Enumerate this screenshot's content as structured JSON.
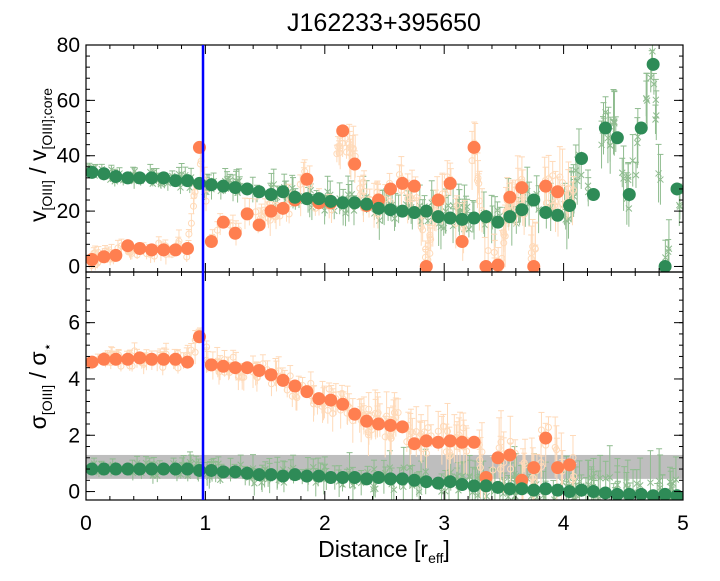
{
  "chart_data": {
    "type": "scatter",
    "title": "J162233+395650",
    "x_axis": {
      "label": "Distance [r",
      "label_sub": "eff",
      "label_close": "]",
      "range": [
        0,
        5
      ],
      "ticks": [
        "0",
        "1",
        "2",
        "3",
        "4",
        "5"
      ]
    },
    "reference_line_x": 0.98,
    "colors": {
      "orange": "#FF7F50",
      "green": "#2E8B57",
      "light_orange": "#FFDAB9",
      "light_green": "#8FBC8F",
      "blue": "#0000FF",
      "band": "#BEBEBE"
    },
    "panels": [
      {
        "ylabel_parts": [
          "v",
          "[OIII]",
          " / v",
          "[OIII];core"
        ],
        "ylim": [
          -2,
          80
        ],
        "yticks": [
          "0",
          "20",
          "40",
          "60",
          "80"
        ],
        "series": [
          {
            "marker": "filled-circle",
            "color": "orange",
            "x": [
              0.05,
              0.15,
              0.25,
              0.35,
              0.45,
              0.55,
              0.65,
              0.75,
              0.85,
              0.95,
              1.05,
              1.15,
              1.25,
              1.35,
              1.45,
              1.55,
              1.65,
              1.75,
              1.85,
              1.95,
              2.05,
              2.15,
              2.25,
              2.35,
              2.45,
              2.55,
              2.65,
              2.75,
              2.85,
              2.95,
              3.05,
              3.15,
              3.25,
              3.35,
              3.45,
              3.55,
              3.65,
              3.75,
              3.85,
              3.95
            ],
            "y": [
              2.5,
              3.5,
              4,
              7.5,
              6.5,
              6,
              6,
              6,
              6.5,
              43,
              9,
              16,
              12,
              19,
              15,
              20,
              21,
              24,
              31.5,
              23,
              23,
              49,
              37,
              22,
              24,
              28,
              30,
              29,
              0,
              24,
              30,
              9,
              43,
              0,
              0.5,
              25,
              28.5,
              0,
              29,
              27
            ]
          },
          {
            "marker": "filled-circle",
            "color": "green",
            "x": [
              0.05,
              0.15,
              0.25,
              0.35,
              0.45,
              0.55,
              0.65,
              0.75,
              0.85,
              0.95,
              1.05,
              1.15,
              1.25,
              1.35,
              1.45,
              1.55,
              1.65,
              1.75,
              1.85,
              1.95,
              2.05,
              2.15,
              2.25,
              2.35,
              2.45,
              2.55,
              2.65,
              2.75,
              2.85,
              2.95,
              3.05,
              3.15,
              3.25,
              3.35,
              3.45,
              3.55,
              3.65,
              3.75,
              3.85,
              3.95,
              4.05,
              4.15,
              4.25,
              4.35,
              4.45,
              4.55,
              4.65,
              4.75,
              4.85,
              4.95
            ],
            "y": [
              34,
              33.5,
              32.5,
              32,
              32,
              32,
              32,
              31,
              31,
              30,
              29.5,
              29,
              28.5,
              28,
              27,
              26,
              27,
              25,
              24.5,
              24.5,
              23.5,
              23,
              23,
              22.5,
              21,
              20.5,
              20,
              19.5,
              20,
              18,
              17.5,
              17,
              17.5,
              18,
              16,
              18,
              20.5,
              24,
              19.5,
              18.5,
              22,
              39,
              26,
              50,
              46.5,
              26,
              50,
              73,
              0,
              28
            ]
          }
        ]
      },
      {
        "ylabel_parts": [
          "σ",
          "[OIII]",
          " / σ",
          "⋆"
        ],
        "ylim": [
          -0.3,
          7.8
        ],
        "yticks": [
          "0",
          "2",
          "4",
          "6"
        ],
        "band": [
          0.45,
          1.3
        ],
        "series": [
          {
            "marker": "filled-circle",
            "color": "orange",
            "x": [
              0.05,
              0.15,
              0.25,
              0.35,
              0.45,
              0.55,
              0.65,
              0.75,
              0.85,
              0.95,
              1.05,
              1.15,
              1.25,
              1.35,
              1.45,
              1.55,
              1.65,
              1.75,
              1.85,
              1.95,
              2.05,
              2.15,
              2.25,
              2.35,
              2.45,
              2.55,
              2.65,
              2.75,
              2.85,
              2.95,
              3.05,
              3.15,
              3.25,
              3.35,
              3.45,
              3.55,
              3.65,
              3.75,
              3.85,
              3.95,
              4.05
            ],
            "y": [
              4.6,
              4.7,
              4.7,
              4.7,
              4.75,
              4.7,
              4.7,
              4.7,
              4.6,
              5.5,
              4.5,
              4.45,
              4.4,
              4.4,
              4.3,
              4.15,
              3.95,
              3.75,
              3.55,
              3.3,
              3.25,
              3.1,
              2.75,
              2.5,
              2.4,
              2.35,
              2.3,
              1.7,
              1.8,
              1.75,
              1.8,
              1.75,
              1.75,
              0.5,
              1.2,
              1.3,
              0.4,
              0.85,
              1.9,
              0.85,
              0.95
            ]
          },
          {
            "marker": "filled-circle",
            "color": "green",
            "x": [
              0.05,
              0.15,
              0.25,
              0.35,
              0.45,
              0.55,
              0.65,
              0.75,
              0.85,
              0.95,
              1.05,
              1.15,
              1.25,
              1.35,
              1.45,
              1.55,
              1.65,
              1.75,
              1.85,
              1.95,
              2.05,
              2.15,
              2.25,
              2.35,
              2.45,
              2.55,
              2.65,
              2.75,
              2.85,
              2.95,
              3.05,
              3.15,
              3.25,
              3.35,
              3.45,
              3.55,
              3.65,
              3.75,
              3.85,
              3.95,
              4.05,
              4.15,
              4.25,
              4.35,
              4.45,
              4.55,
              4.65,
              4.75,
              4.85,
              4.95
            ],
            "y": [
              0.8,
              0.8,
              0.8,
              0.8,
              0.8,
              0.8,
              0.8,
              0.8,
              0.8,
              0.75,
              0.75,
              0.7,
              0.7,
              0.65,
              0.6,
              0.6,
              0.55,
              0.6,
              0.55,
              0.55,
              0.5,
              0.5,
              0.5,
              0.45,
              0.5,
              0.45,
              0.45,
              0.4,
              0.35,
              0.3,
              0.35,
              0.25,
              0.2,
              0.2,
              0.15,
              0.1,
              0.1,
              0.05,
              0.1,
              0.05,
              0.0,
              0.05,
              0.0,
              -0.05,
              -0.1,
              -0.1,
              -0.1,
              -0.15,
              -0.1,
              -0.15
            ]
          }
        ]
      }
    ]
  }
}
